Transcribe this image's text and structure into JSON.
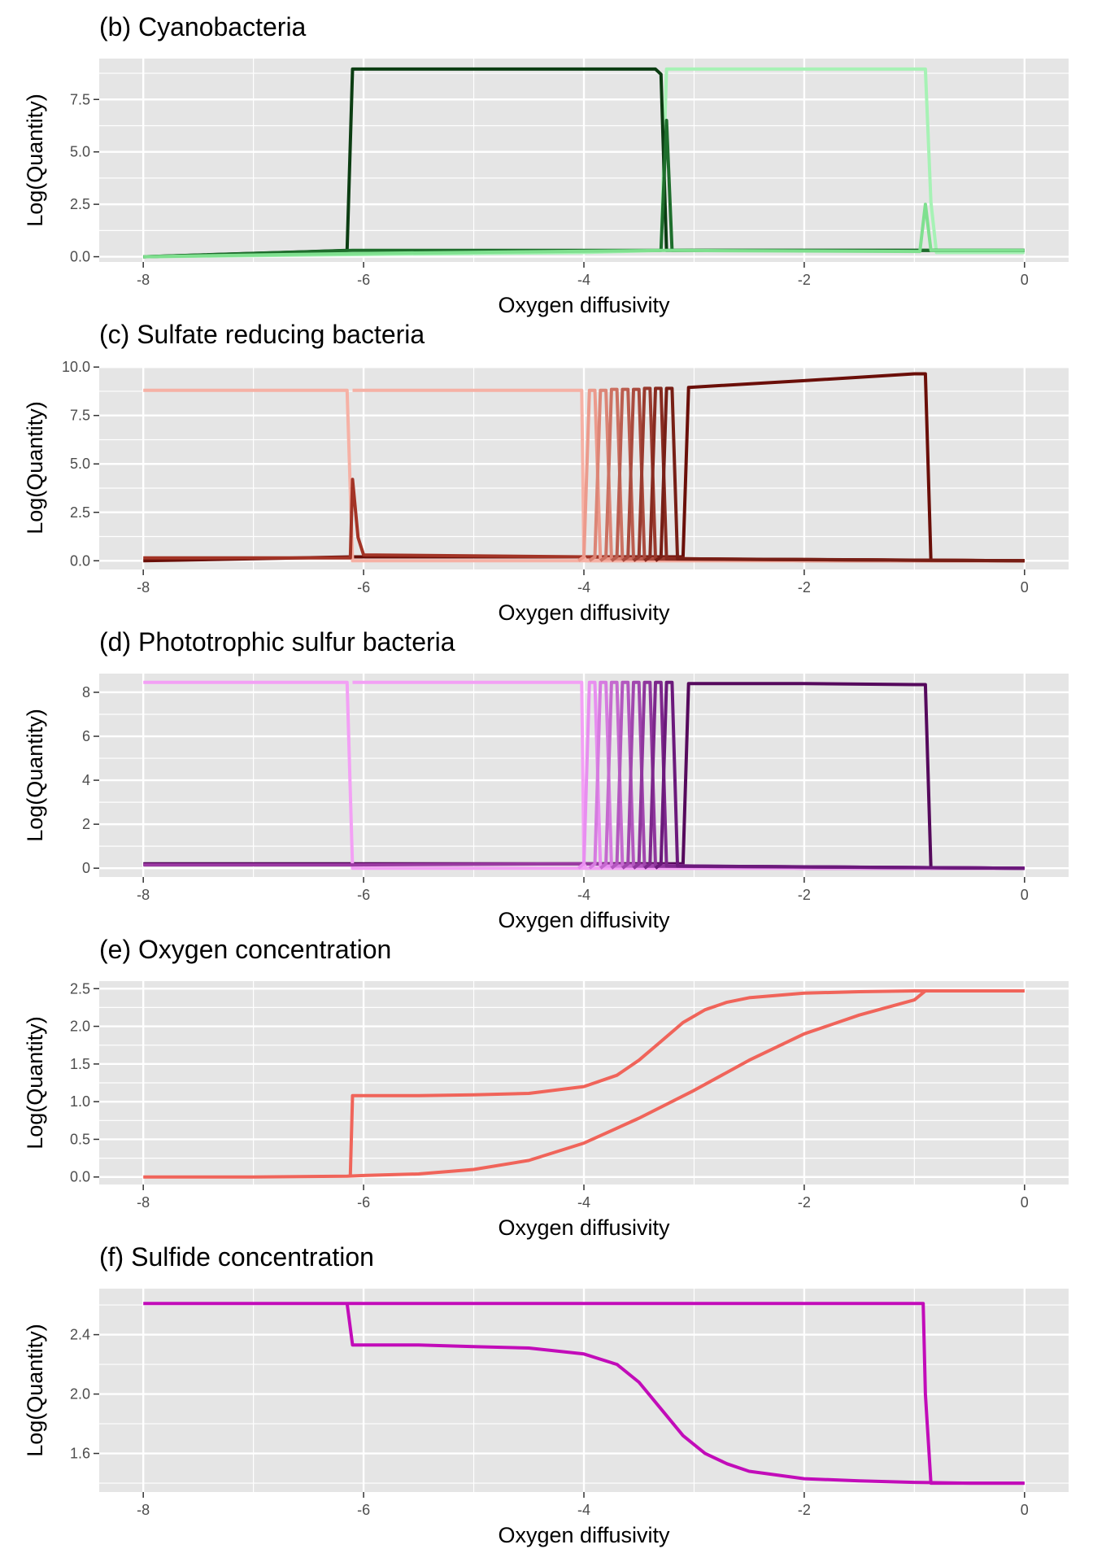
{
  "figure": {
    "background": "#ffffff",
    "panel_background": "#e5e5e5",
    "grid_color": "#ffffff"
  },
  "chart_data": [
    {
      "id": "b",
      "type": "line",
      "title": "(b) Cyanobacteria",
      "xlabel": "Oxygen diffusivity",
      "ylabel": "Log(Quantity)",
      "xlim": [
        -8.4,
        0.4
      ],
      "ylim": [
        -0.25,
        9.45
      ],
      "xticks": [
        -8,
        -6,
        -4,
        -2,
        0
      ],
      "xtick_labels": [
        "-8",
        "-6",
        "-4",
        "-2",
        "0"
      ],
      "yticks": [
        0,
        2.5,
        5,
        7.5
      ],
      "ytick_labels": [
        "0.0",
        "2.5",
        "5.0",
        "7.5"
      ],
      "grid": true,
      "series": [
        {
          "color": "#a6f2b5",
          "x": [
            -8,
            -6.1,
            -4,
            -3.3,
            -3.25,
            -3.2,
            -1.6,
            -0.95,
            -0.9,
            -0.85,
            -0.8,
            0
          ],
          "y": [
            0,
            0.1,
            0.2,
            0.3,
            8.95,
            8.95,
            8.95,
            8.95,
            8.95,
            2.6,
            0.2,
            0.2
          ]
        },
        {
          "color": "#0b3d12",
          "x": [
            -8,
            -6.15,
            -6.1,
            -4.5,
            -3.35,
            -3.3,
            -3.25,
            -2,
            -0.9,
            0
          ],
          "y": [
            0,
            0.3,
            8.95,
            8.95,
            8.95,
            8.7,
            0.3,
            0.3,
            0.3,
            0.3
          ]
        },
        {
          "color": "#1e6e2c",
          "x": [
            -8,
            -6.1,
            -3.3,
            -3.25,
            -3.2,
            0
          ],
          "y": [
            0,
            0.3,
            0.3,
            6.5,
            0.3,
            0.3
          ]
        },
        {
          "color": "#7fe08f",
          "x": [
            -8,
            -6.1,
            -3.25,
            -3.2,
            -0.95,
            -0.9,
            -0.85,
            0
          ],
          "y": [
            0,
            0.15,
            0.3,
            0.3,
            0.25,
            2.5,
            0.3,
            0.3
          ]
        }
      ]
    },
    {
      "id": "c",
      "type": "line",
      "title": "(c) Sulfate reducing bacteria",
      "xlabel": "Oxygen diffusivity",
      "ylabel": "Log(Quantity)",
      "xlim": [
        -8.4,
        0.4
      ],
      "ylim": [
        -0.45,
        10.05
      ],
      "xticks": [
        -8,
        -6,
        -4,
        -2,
        0
      ],
      "xtick_labels": [
        "-8",
        "-6",
        "-4",
        "-2",
        "0"
      ],
      "yticks": [
        0,
        2.5,
        5,
        7.5,
        10
      ],
      "ytick_labels": [
        "0.0",
        "2.5",
        "5.0",
        "7.5",
        "10.0"
      ],
      "grid": true,
      "series": [
        {
          "color": "#6a0e08",
          "x": [
            -8,
            -6.1,
            -4,
            -3.1,
            -3.05,
            -2,
            -1,
            -0.9,
            -0.85,
            0
          ],
          "y": [
            0,
            0.2,
            0.2,
            0.2,
            8.95,
            9.3,
            9.65,
            9.65,
            0,
            0
          ]
        },
        {
          "color": "#f6b1a5",
          "x": [
            -8,
            -6.15,
            -6.1,
            -4,
            -3.95,
            0
          ],
          "y": [
            8.8,
            8.8,
            0,
            0,
            0,
            0
          ]
        },
        {
          "color": "#a33426",
          "x": [
            -8,
            -6.12,
            -6.1,
            -6.05,
            -6.0,
            -4,
            -2,
            0
          ],
          "y": [
            0.15,
            0.15,
            4.2,
            1.2,
            0.3,
            0.2,
            0,
            0
          ]
        },
        {
          "color": "#f6b1a5",
          "x": [
            -6.1,
            -4.02,
            -4.0,
            -3.98,
            0
          ],
          "y": [
            8.8,
            8.8,
            0.2,
            0,
            0
          ]
        },
        {
          "color": "#ec9a8c",
          "x": [
            -4.05,
            -4.0,
            -3.95,
            -3.9,
            -3.85,
            0
          ],
          "y": [
            0,
            0.2,
            8.8,
            8.8,
            0.1,
            0
          ]
        },
        {
          "color": "#dc8576",
          "x": [
            -3.95,
            -3.9,
            -3.85,
            -3.8,
            -3.75,
            0
          ],
          "y": [
            0,
            0.2,
            8.8,
            8.8,
            0.1,
            0
          ]
        },
        {
          "color": "#cc7162",
          "x": [
            -3.85,
            -3.8,
            -3.75,
            -3.7,
            -3.65,
            0
          ],
          "y": [
            0,
            0.2,
            8.85,
            8.85,
            0.1,
            0
          ]
        },
        {
          "color": "#bb5d4f",
          "x": [
            -3.75,
            -3.7,
            -3.65,
            -3.6,
            -3.55,
            0
          ],
          "y": [
            0,
            0.2,
            8.85,
            8.85,
            0.1,
            0
          ]
        },
        {
          "color": "#aa4b3e",
          "x": [
            -3.65,
            -3.6,
            -3.55,
            -3.5,
            -3.45,
            0
          ],
          "y": [
            0,
            0.2,
            8.85,
            8.85,
            0.1,
            0
          ]
        },
        {
          "color": "#993a2e",
          "x": [
            -3.55,
            -3.5,
            -3.45,
            -3.4,
            -3.35,
            0
          ],
          "y": [
            0,
            0.2,
            8.9,
            8.9,
            0.1,
            0
          ]
        },
        {
          "color": "#882b20",
          "x": [
            -3.45,
            -3.4,
            -3.35,
            -3.3,
            -3.25,
            0
          ],
          "y": [
            0,
            0.2,
            8.9,
            8.9,
            0.1,
            0
          ]
        },
        {
          "color": "#771e15",
          "x": [
            -3.35,
            -3.3,
            -3.25,
            -3.2,
            -3.15,
            0
          ],
          "y": [
            0,
            0.2,
            8.9,
            8.9,
            0.1,
            0
          ]
        }
      ]
    },
    {
      "id": "d",
      "type": "line",
      "title": "(d) Phototrophic sulfur bacteria",
      "xlabel": "Oxygen diffusivity",
      "ylabel": "Log(Quantity)",
      "xlim": [
        -8.4,
        0.4
      ],
      "ylim": [
        -0.4,
        8.85
      ],
      "xticks": [
        -8,
        -6,
        -4,
        -2,
        0
      ],
      "xtick_labels": [
        "-8",
        "-6",
        "-4",
        "-2",
        "0"
      ],
      "yticks": [
        0,
        2,
        4,
        6,
        8
      ],
      "ytick_labels": [
        "0",
        "2",
        "4",
        "6",
        "8"
      ],
      "grid": true,
      "series": [
        {
          "color": "#55095c",
          "x": [
            -8,
            -6.1,
            -4,
            -3.1,
            -3.05,
            -2,
            -1,
            -0.9,
            -0.85,
            0
          ],
          "y": [
            0.2,
            0.2,
            0.2,
            0.2,
            8.4,
            8.4,
            8.35,
            8.35,
            0,
            0
          ]
        },
        {
          "color": "#f3a0f5",
          "x": [
            -8,
            -6.15,
            -6.1,
            -4,
            0
          ],
          "y": [
            8.45,
            8.45,
            0,
            0,
            0
          ]
        },
        {
          "color": "#9b3aa2",
          "x": [
            -8,
            -6.1,
            -4,
            -2,
            0
          ],
          "y": [
            0.15,
            0.15,
            0.2,
            0,
            0
          ]
        },
        {
          "color": "#f3a0f5",
          "x": [
            -6.1,
            -4.02,
            -4.0,
            -3.98,
            0
          ],
          "y": [
            8.45,
            8.45,
            0.2,
            0,
            0
          ]
        },
        {
          "color": "#e88ef0",
          "x": [
            -4.05,
            -4.0,
            -3.95,
            -3.9,
            -3.85,
            0
          ],
          "y": [
            0,
            0.2,
            8.45,
            8.45,
            0.1,
            0
          ]
        },
        {
          "color": "#d67be0",
          "x": [
            -3.95,
            -3.9,
            -3.85,
            -3.8,
            -3.75,
            0
          ],
          "y": [
            0,
            0.2,
            8.45,
            8.45,
            0.1,
            0
          ]
        },
        {
          "color": "#c569cf",
          "x": [
            -3.85,
            -3.8,
            -3.75,
            -3.7,
            -3.65,
            0
          ],
          "y": [
            0,
            0.2,
            8.45,
            8.45,
            0.1,
            0
          ]
        },
        {
          "color": "#b357bf",
          "x": [
            -3.75,
            -3.7,
            -3.65,
            -3.6,
            -3.55,
            0
          ],
          "y": [
            0,
            0.2,
            8.45,
            8.45,
            0.1,
            0
          ]
        },
        {
          "color": "#a146ae",
          "x": [
            -3.65,
            -3.6,
            -3.55,
            -3.5,
            -3.45,
            0
          ],
          "y": [
            0,
            0.2,
            8.45,
            8.45,
            0.1,
            0
          ]
        },
        {
          "color": "#8f369d",
          "x": [
            -3.55,
            -3.5,
            -3.45,
            -3.4,
            -3.35,
            0
          ],
          "y": [
            0,
            0.2,
            8.45,
            8.45,
            0.1,
            0
          ]
        },
        {
          "color": "#7d278c",
          "x": [
            -3.45,
            -3.4,
            -3.35,
            -3.3,
            -3.25,
            0
          ],
          "y": [
            0,
            0.2,
            8.45,
            8.45,
            0.1,
            0
          ]
        },
        {
          "color": "#6b197b",
          "x": [
            -3.35,
            -3.3,
            -3.25,
            -3.2,
            -3.15,
            0
          ],
          "y": [
            0,
            0.2,
            8.45,
            8.45,
            0.1,
            0
          ]
        }
      ]
    },
    {
      "id": "e",
      "type": "line",
      "title": "(e) Oxygen concentration",
      "xlabel": "Oxygen diffusivity",
      "ylabel": "Log(Quantity)",
      "xlim": [
        -8.4,
        0.4
      ],
      "ylim": [
        -0.1,
        2.6
      ],
      "xticks": [
        -8,
        -6,
        -4,
        -2,
        0
      ],
      "xtick_labels": [
        "-8",
        "-6",
        "-4",
        "-2",
        "0"
      ],
      "yticks": [
        0,
        0.5,
        1,
        1.5,
        2,
        2.5
      ],
      "ytick_labels": [
        "0.0",
        "0.5",
        "1.0",
        "1.5",
        "2.0",
        "2.5"
      ],
      "grid": true,
      "series": [
        {
          "color": "#f0645a",
          "x": [
            -8,
            -7,
            -6.15,
            -6,
            -5.5,
            -5,
            -4.5,
            -4,
            -3.5,
            -3,
            -2.5,
            -2,
            -1.5,
            -1,
            -0.9,
            -0.5,
            0
          ],
          "y": [
            0,
            0,
            0.01,
            0.02,
            0.04,
            0.1,
            0.22,
            0.45,
            0.78,
            1.15,
            1.55,
            1.9,
            2.15,
            2.35,
            2.47,
            2.47,
            2.47
          ]
        },
        {
          "color": "#f0645a",
          "x": [
            -6.12,
            -6.1,
            -5.5,
            -5,
            -4.5,
            -4,
            -3.7,
            -3.5,
            -3.3,
            -3.1,
            -2.9,
            -2.7,
            -2.5,
            -2,
            -1.5,
            -1,
            -0.5,
            0
          ],
          "y": [
            0.03,
            1.08,
            1.08,
            1.09,
            1.11,
            1.2,
            1.35,
            1.55,
            1.8,
            2.05,
            2.22,
            2.32,
            2.38,
            2.44,
            2.46,
            2.47,
            2.47,
            2.47
          ]
        }
      ]
    },
    {
      "id": "f",
      "type": "line",
      "title": "(f) Sulfide concentration",
      "xlabel": "Oxygen diffusivity",
      "ylabel": "Log(Quantity)",
      "xlim": [
        -8.4,
        0.4
      ],
      "ylim": [
        1.34,
        2.71
      ],
      "xticks": [
        -8,
        -6,
        -4,
        -2,
        0
      ],
      "xtick_labels": [
        "-8",
        "-6",
        "-4",
        "-2",
        "0"
      ],
      "yticks": [
        1.6,
        2.0,
        2.4
      ],
      "ytick_labels": [
        "1.6",
        "2.0",
        "2.4"
      ],
      "grid": true,
      "series": [
        {
          "color": "#c20cb9",
          "x": [
            -8,
            -6.15,
            -4,
            -2,
            -0.92,
            -0.9,
            -0.85,
            0
          ],
          "y": [
            2.61,
            2.61,
            2.61,
            2.61,
            2.61,
            2.0,
            1.4,
            1.4
          ]
        },
        {
          "color": "#c20cb9",
          "x": [
            -6.15,
            -6.1,
            -5.5,
            -5,
            -4.5,
            -4,
            -3.7,
            -3.5,
            -3.3,
            -3.1,
            -2.9,
            -2.7,
            -2.5,
            -2,
            -1.5,
            -1,
            -0.5,
            0
          ],
          "y": [
            2.61,
            2.33,
            2.33,
            2.32,
            2.31,
            2.27,
            2.2,
            2.08,
            1.9,
            1.72,
            1.6,
            1.53,
            1.48,
            1.43,
            1.415,
            1.405,
            1.4,
            1.4
          ]
        }
      ]
    }
  ]
}
